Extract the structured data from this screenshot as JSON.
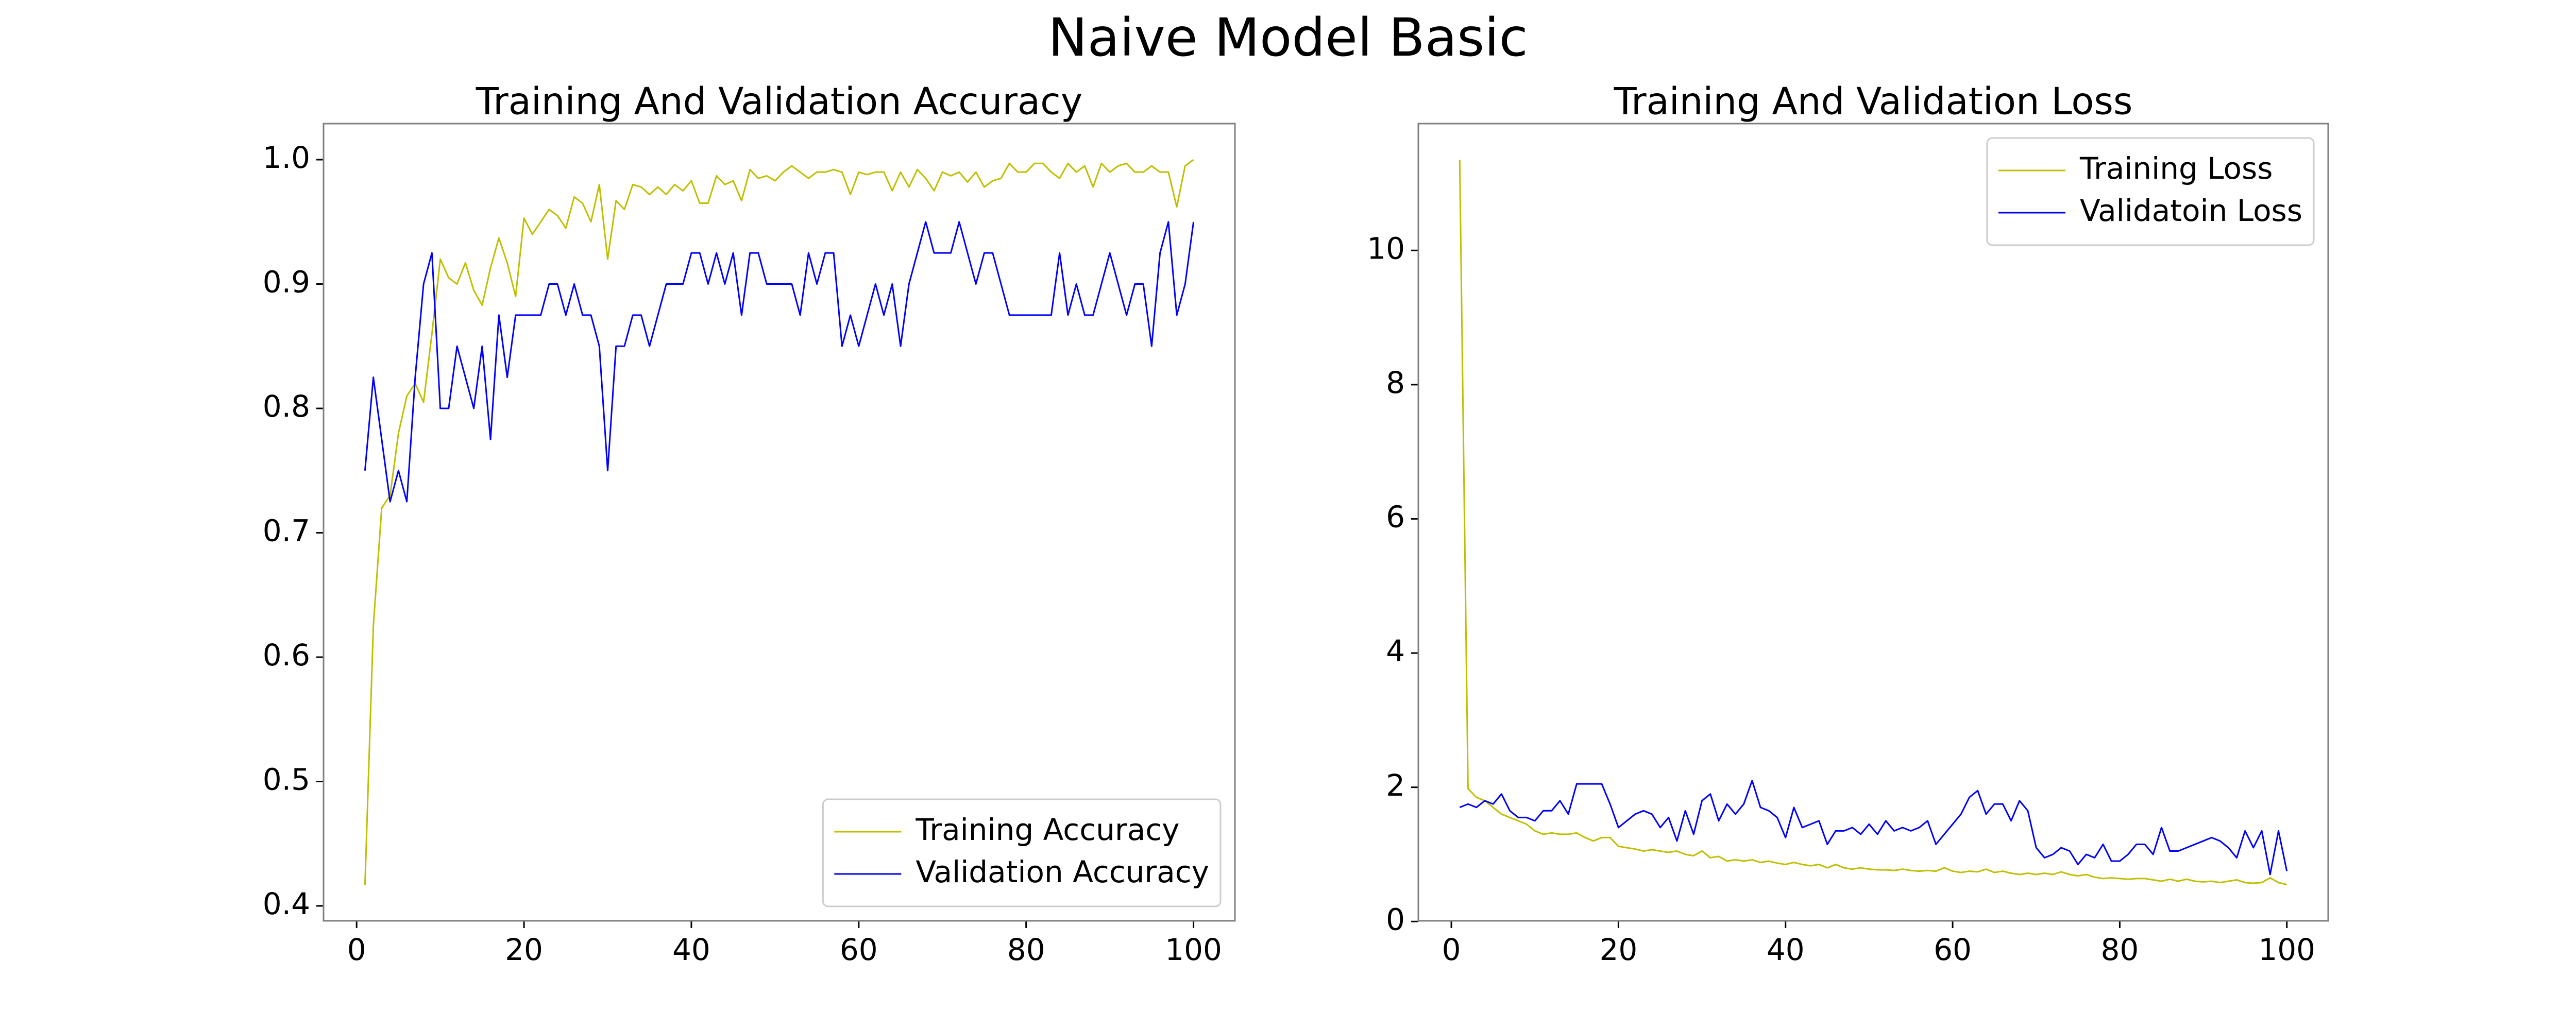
{
  "title": "Naive Model Basic",
  "chart_data": [
    {
      "type": "line",
      "title": "Training And Validation Accuracy",
      "x": [
        1,
        2,
        3,
        4,
        5,
        6,
        7,
        8,
        9,
        10,
        11,
        12,
        13,
        14,
        15,
        16,
        17,
        18,
        19,
        20,
        21,
        22,
        23,
        24,
        25,
        26,
        27,
        28,
        29,
        30,
        31,
        32,
        33,
        34,
        35,
        36,
        37,
        38,
        39,
        40,
        41,
        42,
        43,
        44,
        45,
        46,
        47,
        48,
        49,
        50,
        51,
        52,
        53,
        54,
        55,
        56,
        57,
        58,
        59,
        60,
        61,
        62,
        63,
        64,
        65,
        66,
        67,
        68,
        69,
        70,
        71,
        72,
        73,
        74,
        75,
        76,
        77,
        78,
        79,
        80,
        81,
        82,
        83,
        84,
        85,
        86,
        87,
        88,
        89,
        90,
        91,
        92,
        93,
        94,
        95,
        96,
        97,
        98,
        99,
        100
      ],
      "series": [
        {
          "name": "Training Accuracy",
          "color": "#bfbf00",
          "values": [
            0.417,
            0.625,
            0.72,
            0.73,
            0.78,
            0.81,
            0.82,
            0.805,
            0.86,
            0.92,
            0.905,
            0.9,
            0.917,
            0.895,
            0.883,
            0.913,
            0.937,
            0.917,
            0.89,
            0.953,
            0.94,
            0.95,
            0.96,
            0.955,
            0.945,
            0.97,
            0.965,
            0.95,
            0.98,
            0.92,
            0.967,
            0.96,
            0.98,
            0.978,
            0.972,
            0.978,
            0.972,
            0.98,
            0.975,
            0.983,
            0.965,
            0.965,
            0.987,
            0.98,
            0.983,
            0.967,
            0.992,
            0.985,
            0.987,
            0.983,
            0.99,
            0.995,
            0.99,
            0.985,
            0.99,
            0.99,
            0.992,
            0.99,
            0.972,
            0.99,
            0.988,
            0.99,
            0.99,
            0.975,
            0.99,
            0.978,
            0.992,
            0.985,
            0.975,
            0.99,
            0.987,
            0.99,
            0.982,
            0.99,
            0.978,
            0.983,
            0.985,
            0.997,
            0.99,
            0.99,
            0.997,
            0.997,
            0.99,
            0.985,
            0.997,
            0.99,
            0.995,
            0.978,
            0.997,
            0.99,
            0.995,
            0.997,
            0.99,
            0.99,
            0.995,
            0.99,
            0.99,
            0.962,
            0.995,
            1.0
          ]
        },
        {
          "name": "Validation Accuracy",
          "color": "#0000ff",
          "values": [
            0.75,
            0.825,
            0.775,
            0.725,
            0.75,
            0.725,
            0.825,
            0.9,
            0.925,
            0.8,
            0.8,
            0.85,
            0.825,
            0.8,
            0.85,
            0.775,
            0.875,
            0.825,
            0.875,
            0.875,
            0.875,
            0.875,
            0.9,
            0.9,
            0.875,
            0.9,
            0.875,
            0.875,
            0.85,
            0.75,
            0.85,
            0.85,
            0.875,
            0.875,
            0.85,
            0.875,
            0.9,
            0.9,
            0.9,
            0.925,
            0.925,
            0.9,
            0.925,
            0.9,
            0.925,
            0.875,
            0.925,
            0.925,
            0.9,
            0.9,
            0.9,
            0.9,
            0.875,
            0.925,
            0.9,
            0.925,
            0.925,
            0.85,
            0.875,
            0.85,
            0.875,
            0.9,
            0.875,
            0.9,
            0.85,
            0.9,
            0.925,
            0.95,
            0.925,
            0.925,
            0.925,
            0.95,
            0.925,
            0.9,
            0.925,
            0.925,
            0.9,
            0.875,
            0.875,
            0.875,
            0.875,
            0.875,
            0.875,
            0.925,
            0.875,
            0.9,
            0.875,
            0.875,
            0.9,
            0.925,
            0.9,
            0.875,
            0.9,
            0.9,
            0.85,
            0.925,
            0.95,
            0.875,
            0.9,
            0.95
          ]
        }
      ],
      "xlim": [
        -3.95,
        104.95
      ],
      "ylim": [
        0.388,
        1.029
      ],
      "xticks": [
        0,
        20,
        40,
        60,
        80,
        100
      ],
      "yticks": [
        0.4,
        0.5,
        0.6,
        0.7,
        0.8,
        0.9,
        {
          "value": 1,
          "label": "1.0"
        }
      ],
      "legend": "lower right"
    },
    {
      "type": "line",
      "title": "Training And Validation Loss",
      "x": [
        1,
        2,
        3,
        4,
        5,
        6,
        7,
        8,
        9,
        10,
        11,
        12,
        13,
        14,
        15,
        16,
        17,
        18,
        19,
        20,
        21,
        22,
        23,
        24,
        25,
        26,
        27,
        28,
        29,
        30,
        31,
        32,
        33,
        34,
        35,
        36,
        37,
        38,
        39,
        40,
        41,
        42,
        43,
        44,
        45,
        46,
        47,
        48,
        49,
        50,
        51,
        52,
        53,
        54,
        55,
        56,
        57,
        58,
        59,
        60,
        61,
        62,
        63,
        64,
        65,
        66,
        67,
        68,
        69,
        70,
        71,
        72,
        73,
        74,
        75,
        76,
        77,
        78,
        79,
        80,
        81,
        82,
        83,
        84,
        85,
        86,
        87,
        88,
        89,
        90,
        91,
        92,
        93,
        94,
        95,
        96,
        97,
        98,
        99,
        100
      ],
      "series": [
        {
          "name": "Training Loss",
          "color": "#bfbf00",
          "values": [
            11.35,
            1.98,
            1.85,
            1.8,
            1.7,
            1.6,
            1.55,
            1.5,
            1.45,
            1.35,
            1.3,
            1.32,
            1.3,
            1.3,
            1.32,
            1.25,
            1.2,
            1.25,
            1.25,
            1.12,
            1.1,
            1.08,
            1.05,
            1.07,
            1.05,
            1.03,
            1.05,
            1.0,
            0.98,
            1.05,
            0.95,
            0.97,
            0.9,
            0.92,
            0.9,
            0.92,
            0.88,
            0.9,
            0.87,
            0.85,
            0.88,
            0.85,
            0.83,
            0.85,
            0.8,
            0.85,
            0.8,
            0.78,
            0.8,
            0.78,
            0.77,
            0.77,
            0.76,
            0.78,
            0.76,
            0.75,
            0.76,
            0.75,
            0.8,
            0.75,
            0.73,
            0.75,
            0.74,
            0.78,
            0.73,
            0.75,
            0.72,
            0.7,
            0.72,
            0.7,
            0.72,
            0.7,
            0.74,
            0.7,
            0.68,
            0.7,
            0.66,
            0.64,
            0.65,
            0.64,
            0.63,
            0.64,
            0.64,
            0.62,
            0.6,
            0.63,
            0.6,
            0.63,
            0.6,
            0.59,
            0.6,
            0.58,
            0.6,
            0.62,
            0.58,
            0.57,
            0.58,
            0.65,
            0.58,
            0.55
          ]
        },
        {
          "name": "Validatoin Loss",
          "color": "#0000ff",
          "values": [
            1.7,
            1.75,
            1.7,
            1.8,
            1.75,
            1.9,
            1.65,
            1.55,
            1.55,
            1.5,
            1.65,
            1.65,
            1.8,
            1.6,
            2.05,
            2.05,
            2.05,
            2.05,
            1.75,
            1.4,
            1.5,
            1.6,
            1.65,
            1.6,
            1.4,
            1.55,
            1.2,
            1.65,
            1.3,
            1.8,
            1.9,
            1.5,
            1.75,
            1.6,
            1.75,
            2.1,
            1.7,
            1.65,
            1.55,
            1.25,
            1.7,
            1.4,
            1.45,
            1.5,
            1.15,
            1.35,
            1.35,
            1.4,
            1.3,
            1.45,
            1.3,
            1.5,
            1.35,
            1.4,
            1.35,
            1.4,
            1.5,
            1.15,
            1.3,
            1.45,
            1.6,
            1.85,
            1.95,
            1.6,
            1.75,
            1.75,
            1.5,
            1.8,
            1.65,
            1.1,
            0.95,
            1.0,
            1.1,
            1.05,
            0.85,
            1.0,
            0.95,
            1.15,
            0.9,
            0.9,
            1.0,
            1.15,
            1.15,
            1.0,
            1.4,
            1.05,
            1.05,
            1.1,
            1.15,
            1.2,
            1.25,
            1.2,
            1.1,
            0.95,
            1.35,
            1.1,
            1.35,
            0.7,
            1.35,
            0.75
          ]
        }
      ],
      "xlim": [
        -3.95,
        104.95
      ],
      "ylim": [
        0.01,
        11.89
      ],
      "xticks": [
        0,
        20,
        40,
        60,
        80,
        100
      ],
      "yticks": [
        0,
        2,
        4,
        6,
        8,
        10
      ],
      "legend": "upper right"
    }
  ]
}
